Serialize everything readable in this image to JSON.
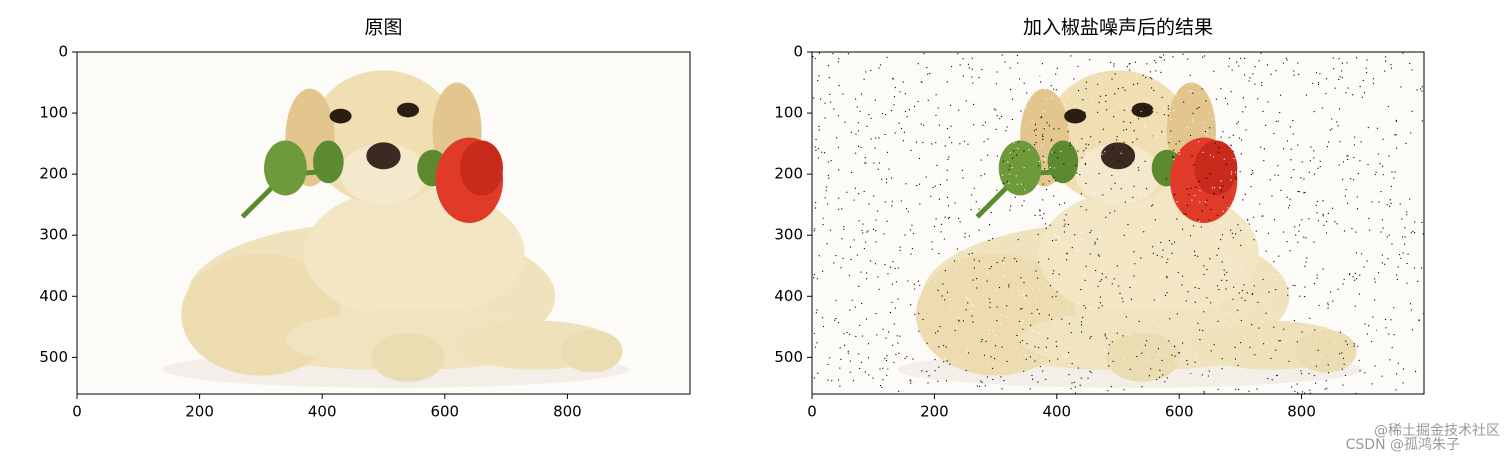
{
  "chart_data": [
    {
      "type": "image",
      "title": "原图",
      "xlim": [
        0,
        1000
      ],
      "ylim": [
        560,
        0
      ],
      "xticks": [
        0,
        200,
        400,
        600,
        800
      ],
      "yticks": [
        0,
        100,
        200,
        300,
        400,
        500
      ],
      "noise": false
    },
    {
      "type": "image",
      "title": "加入椒盐噪声后的结果",
      "xlim": [
        0,
        1000
      ],
      "ylim": [
        560,
        0
      ],
      "xticks": [
        0,
        200,
        400,
        600,
        800
      ],
      "yticks": [
        0,
        100,
        200,
        300,
        400,
        500
      ],
      "noise": true
    }
  ],
  "watermarks": [
    "@稀土掘金技术社区",
    "CSDN @孤鸿朱子"
  ]
}
